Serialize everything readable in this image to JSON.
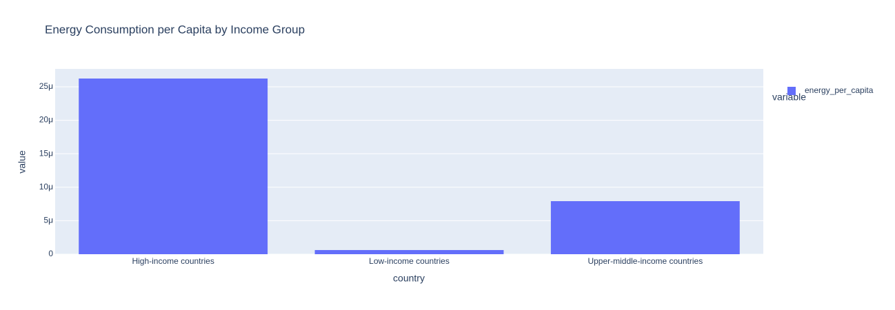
{
  "chart_data": {
    "type": "bar",
    "title": "Energy Consumption per Capita by Income Group",
    "x_label": "country",
    "y_label": "value",
    "categories": [
      "High-income countries",
      "Low-income countries",
      "Upper-middle-income countries"
    ],
    "series": [
      {
        "name": "energy_per_capita",
        "color": "#636efa",
        "values": [
          2.623e-05,
          6.2e-07,
          7.92e-06
        ]
      }
    ],
    "legend_title": "variable",
    "legend_position": "right",
    "ylim": [
      0,
      2.767e-05
    ],
    "yticks": [
      0,
      {
        "value": 5e-06,
        "label": "5μ"
      },
      {
        "value": 1e-05,
        "label": "10μ"
      },
      {
        "value": 1.5e-05,
        "label": "15μ"
      },
      {
        "value": 2e-05,
        "label": "20μ"
      },
      {
        "value": 2.5e-05,
        "label": "25μ"
      }
    ],
    "grid": true
  }
}
